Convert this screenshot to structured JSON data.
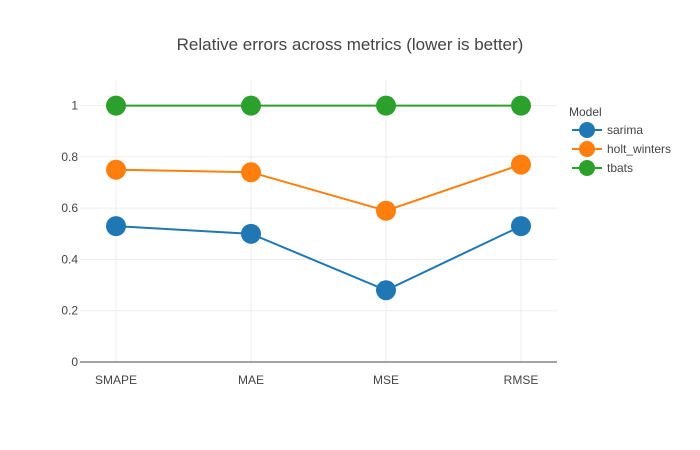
{
  "chart_data": {
    "type": "line",
    "title": "Relative errors across metrics (lower is better)",
    "xlabel": "",
    "ylabel": "",
    "categories": [
      "SMAPE",
      "MAE",
      "MSE",
      "RMSE"
    ],
    "ylim": [
      0,
      1.1
    ],
    "yticks": [
      0,
      0.2,
      0.4,
      0.6,
      0.8,
      1
    ],
    "ytick_labels": [
      "0",
      "0.2",
      "0.4",
      "0.6",
      "0.8",
      "1"
    ],
    "grid": true,
    "legend": {
      "title": "Model",
      "position": "right"
    },
    "series": [
      {
        "name": "sarima",
        "color": "#1f77b4",
        "values": [
          0.53,
          0.5,
          0.28,
          0.53
        ]
      },
      {
        "name": "holt_winters",
        "color": "#ff7f0e",
        "values": [
          0.75,
          0.74,
          0.59,
          0.77
        ]
      },
      {
        "name": "tbats",
        "color": "#2ca02c",
        "values": [
          1,
          1,
          1,
          1
        ]
      }
    ]
  }
}
